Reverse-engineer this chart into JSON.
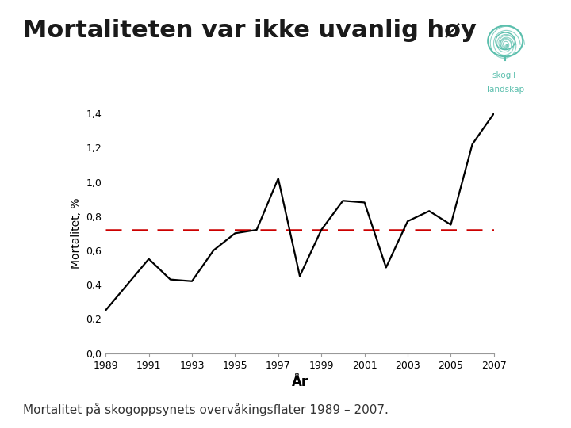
{
  "title": "Mortaliteten var ikke uvanlig høy",
  "subtitle": "Mortalitet på skogoppsynets overvåkingsflater 1989 – 2007.",
  "xlabel": "År",
  "ylabel": "Mortalitet, %",
  "background_color": "#ffffff",
  "years": [
    1989,
    1990,
    1991,
    1992,
    1993,
    1994,
    1995,
    1996,
    1997,
    1998,
    1999,
    2000,
    2001,
    2002,
    2003,
    2004,
    2005,
    2006,
    2007
  ],
  "values": [
    0.25,
    0.4,
    0.55,
    0.43,
    0.42,
    0.6,
    0.7,
    0.72,
    1.02,
    0.45,
    0.72,
    0.89,
    0.88,
    0.5,
    0.77,
    0.83,
    0.75,
    1.22,
    1.4
  ],
  "reference_line": 0.718,
  "ylim": [
    0.0,
    1.4
  ],
  "yticks": [
    0.0,
    0.2,
    0.4,
    0.6,
    0.8,
    1.0,
    1.2,
    1.4
  ],
  "ytick_labels": [
    "0,0",
    "0,2",
    "0,4",
    "0,6",
    "0,8",
    "1,0",
    "1,2",
    "1,4"
  ],
  "xticks": [
    1989,
    1991,
    1993,
    1995,
    1997,
    1999,
    2001,
    2003,
    2005,
    2007
  ],
  "line_color": "#000000",
  "ref_line_color": "#cc0000",
  "left_bar_color": "#7ab520",
  "title_fontsize": 22,
  "axis_fontsize": 10,
  "tick_fontsize": 9,
  "subtitle_fontsize": 11,
  "logo_color": "#5bbfad"
}
